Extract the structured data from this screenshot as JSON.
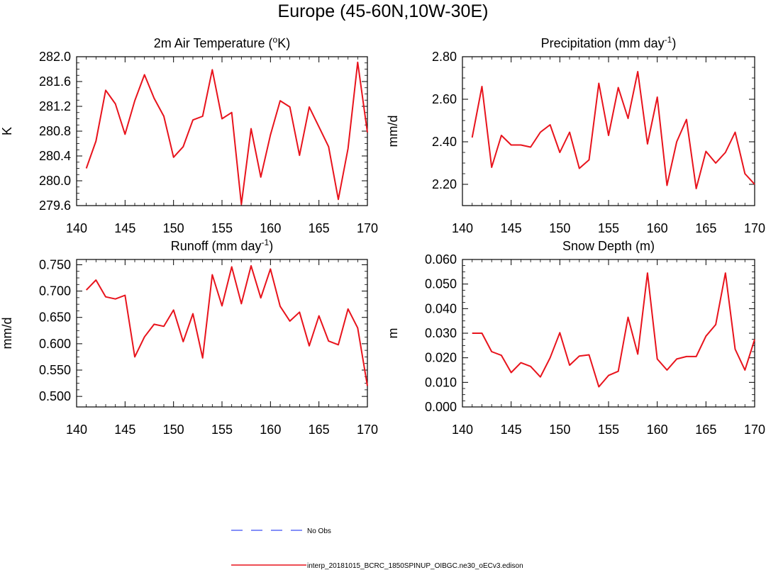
{
  "title": "Europe (45-60N,10W-30E)",
  "colors": {
    "model": "#e8131c",
    "obs": "#5b6bf5",
    "axis": "#000000"
  },
  "legend": {
    "obs_label": "No Obs",
    "model_label": "interp_20181015_BCRC_1850SPINUP_OIBGC.ne30_oECv3.edison"
  },
  "chart_data": [
    {
      "type": "line",
      "title": "2m Air Temperature (°K)",
      "title_main": "2m Air Temperature (",
      "title_sup": "o",
      "title_end": "K)",
      "xlabel": "",
      "ylabel": "K",
      "xlim": [
        140,
        170
      ],
      "ylim": [
        279.6,
        282.0
      ],
      "xticks": [
        140,
        145,
        150,
        155,
        160,
        165,
        170
      ],
      "xtick_labels": [
        "140",
        "145",
        "150",
        "155",
        "160",
        "165",
        "170"
      ],
      "yticks": [
        279.6,
        280.0,
        280.4,
        280.8,
        281.2,
        281.6,
        282.0
      ],
      "ytick_labels": [
        "279.6",
        "280.0",
        "280.4",
        "280.8",
        "281.2",
        "281.6",
        "282.0"
      ],
      "series": [
        {
          "name": "interp_20181015_BCRC_1850SPINUP_OIBGC.ne30_oECv3.edison",
          "x": [
            141,
            142,
            143,
            144,
            145,
            146,
            147,
            148,
            149,
            150,
            151,
            152,
            153,
            154,
            155,
            156,
            157,
            158,
            159,
            160,
            161,
            162,
            163,
            164,
            165,
            166,
            167,
            168,
            169,
            170
          ],
          "y": [
            280.2,
            280.64,
            281.46,
            281.24,
            280.75,
            281.29,
            281.71,
            281.33,
            281.04,
            280.38,
            280.55,
            280.98,
            281.04,
            281.79,
            281.0,
            281.1,
            279.62,
            280.84,
            280.06,
            280.74,
            281.29,
            281.19,
            280.41,
            281.19,
            280.87,
            280.55,
            279.7,
            280.52,
            281.91,
            280.78
          ]
        }
      ]
    },
    {
      "type": "line",
      "title": "Precipitation (mm day-1)",
      "title_main": "Precipitation (mm day",
      "title_sup": "-1",
      "title_end": ")",
      "xlabel": "",
      "ylabel": "mm/d",
      "xlim": [
        140,
        170
      ],
      "ylim": [
        2.1,
        2.8
      ],
      "xticks": [
        140,
        145,
        150,
        155,
        160,
        165,
        170
      ],
      "xtick_labels": [
        "140",
        "145",
        "150",
        "155",
        "160",
        "165",
        "170"
      ],
      "yticks": [
        2.2,
        2.4,
        2.6,
        2.8
      ],
      "ytick_labels": [
        "2.20",
        "2.40",
        "2.60",
        "2.80"
      ],
      "series": [
        {
          "name": "interp_20181015_BCRC_1850SPINUP_OIBGC.ne30_oECv3.edison",
          "x": [
            141,
            142,
            143,
            144,
            145,
            146,
            147,
            148,
            149,
            150,
            151,
            152,
            153,
            154,
            155,
            156,
            157,
            158,
            159,
            160,
            161,
            162,
            163,
            164,
            165,
            166,
            167,
            168,
            169,
            170
          ],
          "y": [
            2.42,
            2.66,
            2.28,
            2.43,
            2.385,
            2.385,
            2.375,
            2.445,
            2.48,
            2.35,
            2.445,
            2.275,
            2.315,
            2.675,
            2.43,
            2.655,
            2.51,
            2.73,
            2.39,
            2.61,
            2.195,
            2.4,
            2.505,
            2.18,
            2.355,
            2.3,
            2.35,
            2.445,
            2.25,
            2.2
          ]
        }
      ]
    },
    {
      "type": "line",
      "title": "Runoff (mm day-1)",
      "title_main": "Runoff (mm day",
      "title_sup": "-1",
      "title_end": ")",
      "xlabel": "",
      "ylabel": "mm/d",
      "xlim": [
        140,
        170
      ],
      "ylim": [
        0.48,
        0.76
      ],
      "xticks": [
        140,
        145,
        150,
        155,
        160,
        165,
        170
      ],
      "xtick_labels": [
        "140",
        "145",
        "150",
        "155",
        "160",
        "165",
        "170"
      ],
      "yticks": [
        0.5,
        0.55,
        0.6,
        0.65,
        0.7,
        0.75
      ],
      "ytick_labels": [
        "0.500",
        "0.550",
        "0.600",
        "0.650",
        "0.700",
        "0.750"
      ],
      "series": [
        {
          "name": "interp_20181015_BCRC_1850SPINUP_OIBGC.ne30_oECv3.edison",
          "x": [
            141,
            142,
            143,
            144,
            145,
            146,
            147,
            148,
            149,
            150,
            151,
            152,
            153,
            154,
            155,
            156,
            157,
            158,
            159,
            160,
            161,
            162,
            163,
            164,
            165,
            166,
            167,
            168,
            169,
            170
          ],
          "y": [
            0.702,
            0.721,
            0.689,
            0.685,
            0.692,
            0.575,
            0.613,
            0.637,
            0.633,
            0.664,
            0.604,
            0.657,
            0.573,
            0.731,
            0.672,
            0.746,
            0.676,
            0.748,
            0.687,
            0.742,
            0.671,
            0.643,
            0.66,
            0.596,
            0.653,
            0.605,
            0.598,
            0.666,
            0.63,
            0.52
          ]
        }
      ]
    },
    {
      "type": "line",
      "title": "Snow Depth (m)",
      "title_main": "Snow Depth (m)",
      "title_sup": "",
      "title_end": "",
      "xlabel": "",
      "ylabel": "m",
      "xlim": [
        140,
        170
      ],
      "ylim": [
        0.0,
        0.06
      ],
      "xticks": [
        140,
        145,
        150,
        155,
        160,
        165,
        170
      ],
      "xtick_labels": [
        "140",
        "145",
        "150",
        "155",
        "160",
        "165",
        "170"
      ],
      "yticks": [
        0.0,
        0.01,
        0.02,
        0.03,
        0.04,
        0.05,
        0.06
      ],
      "ytick_labels": [
        "0.000",
        "0.010",
        "0.020",
        "0.030",
        "0.040",
        "0.050",
        "0.060"
      ],
      "series": [
        {
          "name": "interp_20181015_BCRC_1850SPINUP_OIBGC.ne30_oECv3.edison",
          "x": [
            141,
            142,
            143,
            144,
            145,
            146,
            147,
            148,
            149,
            150,
            151,
            152,
            153,
            154,
            155,
            156,
            157,
            158,
            159,
            160,
            161,
            162,
            163,
            164,
            165,
            166,
            167,
            168,
            169,
            170
          ],
          "y": [
            0.03,
            0.03,
            0.0225,
            0.021,
            0.014,
            0.018,
            0.0165,
            0.0122,
            0.02,
            0.0302,
            0.017,
            0.0207,
            0.0212,
            0.0082,
            0.0128,
            0.0145,
            0.0365,
            0.0215,
            0.0545,
            0.0195,
            0.015,
            0.0195,
            0.0205,
            0.0205,
            0.0288,
            0.0335,
            0.0545,
            0.0235,
            0.015,
            0.0275
          ]
        }
      ]
    }
  ]
}
